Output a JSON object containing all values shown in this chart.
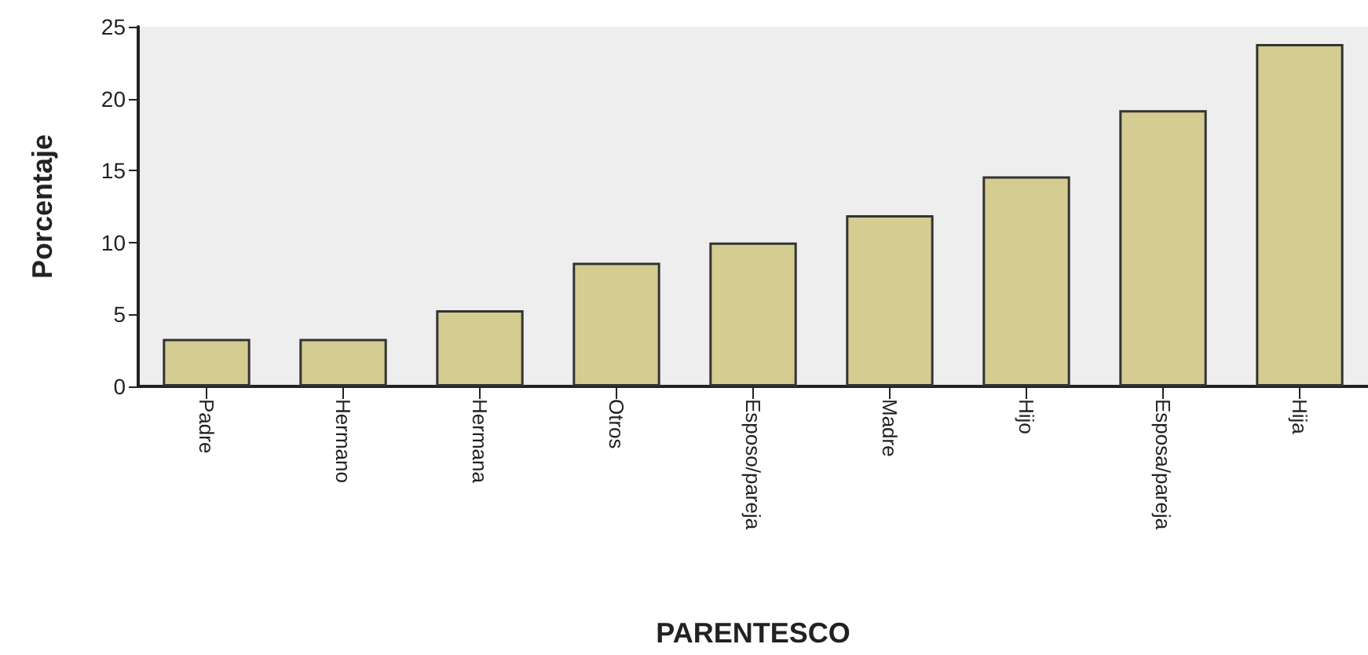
{
  "chart_data": {
    "type": "bar",
    "xlabel": "PARENTESCO",
    "ylabel": "Porcentaje",
    "categories": [
      "Padre",
      "Hermano",
      "Hermana",
      "Otros",
      "Esposo/pareja",
      "Madre",
      "Hijo",
      "Esposa/pareja",
      "Hija"
    ],
    "values": [
      3.3,
      3.3,
      5.3,
      8.6,
      10.0,
      11.9,
      14.6,
      19.2,
      23.8
    ],
    "color": "#d4cc91",
    "ylim": [
      0,
      25
    ],
    "yticks": [
      0,
      5,
      10,
      15,
      20,
      25
    ],
    "grid": false
  }
}
